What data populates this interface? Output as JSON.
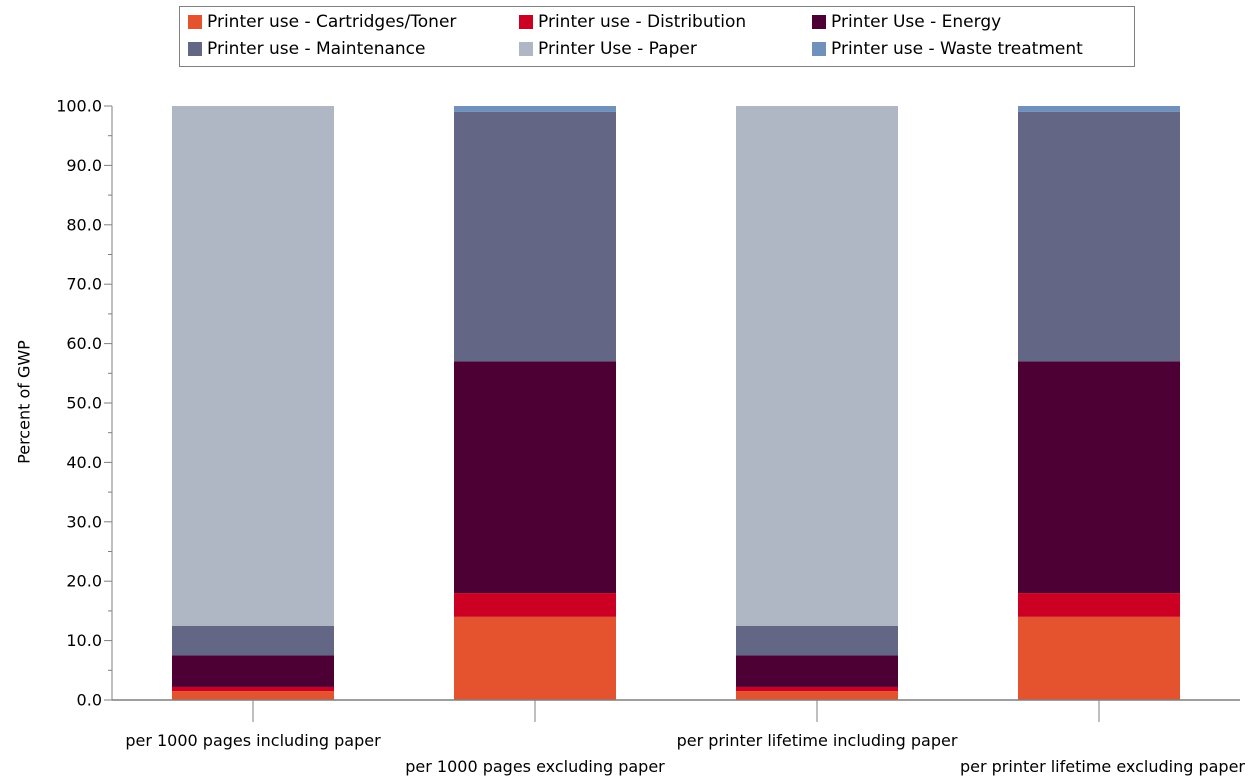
{
  "chart_data": {
    "type": "bar",
    "stacked": true,
    "ylabel": "Percent of GWP",
    "ylim": [
      0,
      100
    ],
    "yticks": [
      "0.0",
      "10.0",
      "20.0",
      "30.0",
      "40.0",
      "50.0",
      "60.0",
      "70.0",
      "80.0",
      "90.0",
      "100.0"
    ],
    "categories": [
      "per 1000 pages including paper",
      "per 1000 pages excluding paper",
      "per printer lifetime including paper",
      "per printer lifetime excluding paper"
    ],
    "series": [
      {
        "name": "Printer use - Cartridges/Toner",
        "color": "#e5532e",
        "values": [
          1.5,
          14.0,
          1.5,
          14.0
        ]
      },
      {
        "name": "Printer use - Distribution",
        "color": "#cc0022",
        "values": [
          0.7,
          4.0,
          0.7,
          4.0
        ]
      },
      {
        "name": "Printer Use - Energy",
        "color": "#4d0033",
        "values": [
          5.3,
          39.0,
          5.3,
          39.0
        ]
      },
      {
        "name": "Printer use - Maintenance",
        "color": "#636684",
        "values": [
          5.0,
          42.0,
          5.0,
          42.0
        ]
      },
      {
        "name": "Printer Use - Paper",
        "color": "#aeb7c3",
        "values": [
          87.5,
          0.0,
          87.5,
          0.0
        ]
      },
      {
        "name": "Printer use - Waste treatment",
        "color": "#7091bc",
        "values": [
          0.0,
          1.0,
          0.0,
          1.0
        ]
      }
    ],
    "legend_position": "top",
    "grid": false
  }
}
